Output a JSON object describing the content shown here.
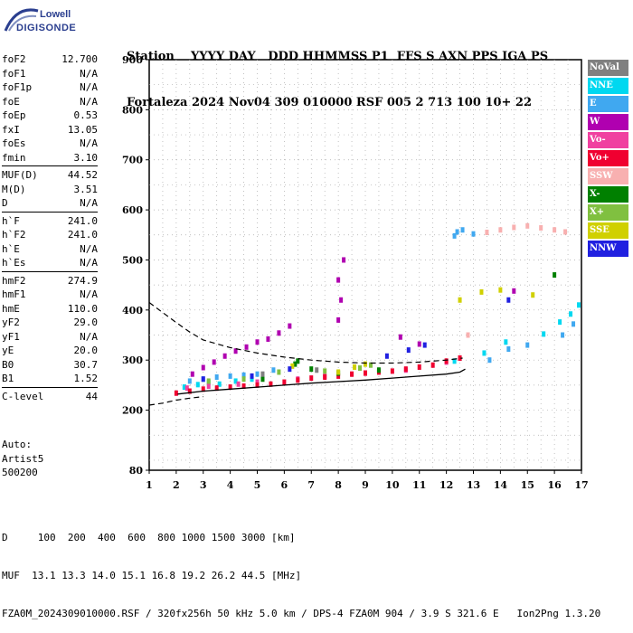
{
  "logo": {
    "line1": "Lowell",
    "line2": "DIGISONDE"
  },
  "header": {
    "labels_row": "Station    YYYY DAY   DDD HHMMSS P1  FFS S AXN PPS IGA PS",
    "values_row": "Fortaleza 2024 Nov04 309 010000 RSF 005 2 713 100 10+ 22"
  },
  "params": {
    "group1": [
      {
        "name": "foF2",
        "value": "12.700"
      },
      {
        "name": "foF1",
        "value": "N/A"
      },
      {
        "name": "foF1p",
        "value": "N/A"
      },
      {
        "name": "foE",
        "value": "N/A"
      },
      {
        "name": "foEp",
        "value": "0.53"
      },
      {
        "name": "fxI",
        "value": "13.05"
      },
      {
        "name": "foEs",
        "value": "N/A"
      },
      {
        "name": "fmin",
        "value": "3.10"
      }
    ],
    "group2": [
      {
        "name": "MUF(D)",
        "value": "44.52"
      },
      {
        "name": "M(D)",
        "value": "3.51"
      },
      {
        "name": "D",
        "value": "N/A"
      }
    ],
    "group3": [
      {
        "name": "h`F",
        "value": "241.0"
      },
      {
        "name": "h`F2",
        "value": "241.0"
      },
      {
        "name": "h`E",
        "value": "N/A"
      },
      {
        "name": "h`Es",
        "value": "N/A"
      }
    ],
    "group4": [
      {
        "name": "hmF2",
        "value": "274.9"
      },
      {
        "name": "hmF1",
        "value": "N/A"
      },
      {
        "name": "hmE",
        "value": "110.0"
      },
      {
        "name": "yF2",
        "value": "29.0"
      },
      {
        "name": "yF1",
        "value": "N/A"
      },
      {
        "name": "yE",
        "value": "20.0"
      },
      {
        "name": "B0",
        "value": "30.7"
      },
      {
        "name": "B1",
        "value": "1.52"
      }
    ],
    "group5": [
      {
        "name": "C-level",
        "value": "44"
      }
    ]
  },
  "auto": {
    "line1": "Auto:",
    "line2": "Artist5",
    "line3": "500200"
  },
  "legend": [
    {
      "label": "NoVal",
      "color": "#808080"
    },
    {
      "label": "NNE",
      "color": "#00d8f0"
    },
    {
      "label": "E",
      "color": "#40a8f0"
    },
    {
      "label": "W",
      "color": "#b000b0"
    },
    {
      "label": "Vo-",
      "color": "#f040a0"
    },
    {
      "label": "Vo+",
      "color": "#f00030"
    },
    {
      "label": "SSW",
      "color": "#f8b0b0"
    },
    {
      "label": "X-",
      "color": "#008000"
    },
    {
      "label": "X+",
      "color": "#80c040"
    },
    {
      "label": "SSE",
      "color": "#d0d000"
    },
    {
      "label": "NNW",
      "color": "#2020e0"
    }
  ],
  "footer": {
    "row1": "D     100  200  400  600  800 1000 1500 3000 [km]",
    "row2": "MUF  13.1 13.3 14.0 15.1 16.8 19.2 26.2 44.5 [MHz]",
    "row3": "FZA0M_2024309010000.RSF / 320fx256h 50 kHz 5.0 km / DPS-4 FZA0M 904 / 3.9 S 321.6 E   Ion2Png 1.3.20"
  },
  "chart_data": {
    "type": "scatter",
    "title": "",
    "xlabel": "",
    "ylabel": "",
    "xlim": [
      1,
      17
    ],
    "ylim": [
      80,
      900
    ],
    "x_ticks": [
      "1",
      "2",
      "3",
      "4",
      "5",
      "6",
      "7",
      "8",
      "9",
      "10",
      "11",
      "12",
      "13",
      "14",
      "15",
      "16",
      "17"
    ],
    "y_ticks": [
      "80",
      "200",
      "300",
      "400",
      "500",
      "600",
      "700",
      "800",
      "900"
    ],
    "y_tick_values": [
      80,
      200,
      300,
      400,
      500,
      600,
      700,
      800,
      900
    ],
    "series": [
      {
        "name": "NNE",
        "color": "#00d8f0",
        "points": [
          [
            2.3,
            246
          ],
          [
            2.8,
            251
          ],
          [
            3.2,
            255
          ],
          [
            3.6,
            252
          ],
          [
            4.2,
            258
          ],
          [
            4.8,
            262
          ],
          [
            5.2,
            266
          ],
          [
            12.3,
            298
          ],
          [
            13.4,
            314
          ],
          [
            14.2,
            336
          ],
          [
            15.6,
            352
          ],
          [
            16.2,
            376
          ],
          [
            16.6,
            392
          ],
          [
            16.9,
            410
          ]
        ]
      },
      {
        "name": "E",
        "color": "#40a8f0",
        "points": [
          [
            2.5,
            258
          ],
          [
            3.0,
            262
          ],
          [
            3.5,
            266
          ],
          [
            4.0,
            268
          ],
          [
            4.5,
            270
          ],
          [
            5.0,
            272
          ],
          [
            5.6,
            280
          ],
          [
            12.3,
            548
          ],
          [
            12.4,
            556
          ],
          [
            12.6,
            560
          ],
          [
            13.0,
            552
          ],
          [
            13.6,
            300
          ],
          [
            14.3,
            322
          ],
          [
            15.0,
            330
          ],
          [
            16.3,
            350
          ],
          [
            16.7,
            372
          ]
        ]
      },
      {
        "name": "W",
        "color": "#b000b0",
        "points": [
          [
            2.6,
            272
          ],
          [
            3.0,
            285
          ],
          [
            3.4,
            296
          ],
          [
            3.8,
            308
          ],
          [
            4.2,
            318
          ],
          [
            4.6,
            326
          ],
          [
            5.0,
            336
          ],
          [
            5.4,
            342
          ],
          [
            5.8,
            354
          ],
          [
            6.2,
            368
          ],
          [
            8.0,
            380
          ],
          [
            8.1,
            420
          ],
          [
            8.0,
            460
          ],
          [
            8.2,
            500
          ],
          [
            10.3,
            346
          ],
          [
            11.0,
            332
          ],
          [
            14.5,
            438
          ]
        ]
      },
      {
        "name": "Vo-",
        "color": "#f040a0",
        "points": [
          [
            2.4,
            244
          ],
          [
            3.2,
            248
          ],
          [
            4.3,
            252
          ],
          [
            5.0,
            256
          ],
          [
            6.5,
            262
          ],
          [
            7.5,
            268
          ],
          [
            9.0,
            274
          ],
          [
            10.5,
            280
          ],
          [
            12.0,
            296
          ]
        ]
      },
      {
        "name": "Vo+",
        "color": "#f00030",
        "points": [
          [
            2.0,
            234
          ],
          [
            2.5,
            238
          ],
          [
            3.0,
            242
          ],
          [
            3.5,
            244
          ],
          [
            4.0,
            246
          ],
          [
            4.5,
            248
          ],
          [
            5.0,
            250
          ],
          [
            5.5,
            252
          ],
          [
            6.0,
            256
          ],
          [
            6.5,
            260
          ],
          [
            7.0,
            264
          ],
          [
            7.5,
            266
          ],
          [
            8.0,
            268
          ],
          [
            8.5,
            272
          ],
          [
            9.0,
            274
          ],
          [
            9.5,
            276
          ],
          [
            10.0,
            278
          ],
          [
            10.5,
            282
          ],
          [
            11.0,
            286
          ],
          [
            11.5,
            290
          ],
          [
            12.0,
            298
          ],
          [
            12.5,
            304
          ]
        ]
      },
      {
        "name": "SSW",
        "color": "#f8b0b0",
        "points": [
          [
            12.8,
            350
          ],
          [
            13.5,
            555
          ],
          [
            14.0,
            560
          ],
          [
            14.5,
            565
          ],
          [
            15.0,
            568
          ],
          [
            15.5,
            564
          ],
          [
            16.0,
            560
          ],
          [
            16.4,
            556
          ]
        ]
      },
      {
        "name": "X-",
        "color": "#008000",
        "points": [
          [
            5.2,
            262
          ],
          [
            6.4,
            292
          ],
          [
            6.5,
            298
          ],
          [
            7.0,
            282
          ],
          [
            8.0,
            274
          ],
          [
            9.5,
            280
          ],
          [
            16.0,
            470
          ]
        ]
      },
      {
        "name": "X+",
        "color": "#80c040",
        "points": [
          [
            3.2,
            258
          ],
          [
            4.5,
            262
          ],
          [
            5.8,
            276
          ],
          [
            7.5,
            278
          ],
          [
            8.8,
            284
          ],
          [
            9.2,
            290
          ]
        ]
      },
      {
        "name": "SSE",
        "color": "#d0d000",
        "points": [
          [
            6.3,
            288
          ],
          [
            8.0,
            276
          ],
          [
            8.6,
            286
          ],
          [
            9.0,
            292
          ],
          [
            12.5,
            420
          ],
          [
            13.3,
            436
          ],
          [
            14.0,
            440
          ],
          [
            15.2,
            430
          ]
        ]
      },
      {
        "name": "NNW",
        "color": "#2020e0",
        "points": [
          [
            3.0,
            262
          ],
          [
            4.8,
            268
          ],
          [
            6.2,
            282
          ],
          [
            9.8,
            308
          ],
          [
            10.6,
            320
          ],
          [
            11.2,
            330
          ],
          [
            14.3,
            420
          ]
        ]
      },
      {
        "name": "NoVal",
        "color": "#808080",
        "points": [
          [
            5.2,
            272
          ],
          [
            7.2,
            280
          ]
        ]
      }
    ],
    "trace_solid": {
      "name": "",
      "points": [
        [
          2.05,
          232
        ],
        [
          3.0,
          238
        ],
        [
          4.0,
          242
        ],
        [
          5.0,
          246
        ],
        [
          6.0,
          250
        ],
        [
          7.0,
          254
        ],
        [
          8.0,
          257
        ],
        [
          9.0,
          260
        ],
        [
          10.0,
          264
        ],
        [
          11.0,
          268
        ],
        [
          12.0,
          272
        ],
        [
          12.5,
          276
        ],
        [
          12.7,
          282
        ]
      ]
    },
    "trace_dashed": {
      "name": "",
      "points": [
        [
          1.0,
          415
        ],
        [
          1.5,
          395
        ],
        [
          2.0,
          375
        ],
        [
          2.5,
          356
        ],
        [
          3.0,
          340
        ],
        [
          4.0,
          325
        ],
        [
          5.0,
          314
        ],
        [
          6.0,
          306
        ],
        [
          7.0,
          300
        ],
        [
          8.0,
          296
        ],
        [
          9.0,
          294
        ],
        [
          10.0,
          294
        ],
        [
          11.0,
          296
        ],
        [
          12.0,
          300
        ],
        [
          12.6,
          304
        ]
      ]
    },
    "trace_dashed_low": {
      "name": "",
      "points": [
        [
          1.0,
          210
        ],
        [
          1.5,
          214
        ],
        [
          2.0,
          220
        ],
        [
          2.5,
          224
        ],
        [
          3.0,
          227
        ]
      ]
    }
  }
}
